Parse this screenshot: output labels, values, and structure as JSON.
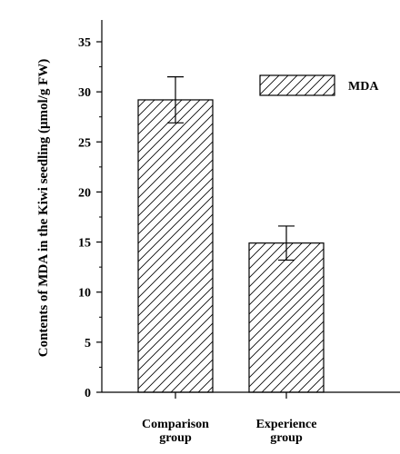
{
  "chart_data": {
    "type": "bar",
    "title": "",
    "xlabel": "",
    "ylabel": "Contents of MDA in the Kiwi seedling (μmol/g FW)",
    "categories": [
      [
        "Comparison",
        "group"
      ],
      [
        "Experience",
        "group"
      ]
    ],
    "series": [
      {
        "name": "MDA",
        "values": [
          29.2,
          14.9
        ],
        "error": [
          2.3,
          1.7
        ],
        "pattern": "diagonal-hatch"
      }
    ],
    "ylim": [
      0,
      37
    ],
    "yticks": [
      0,
      5,
      10,
      15,
      20,
      25,
      30,
      35
    ],
    "grid": false,
    "legend_position": "top-right",
    "colors": {
      "bar_fill": "#ffffff",
      "hatch": "#000000",
      "axis": "#000000"
    }
  }
}
